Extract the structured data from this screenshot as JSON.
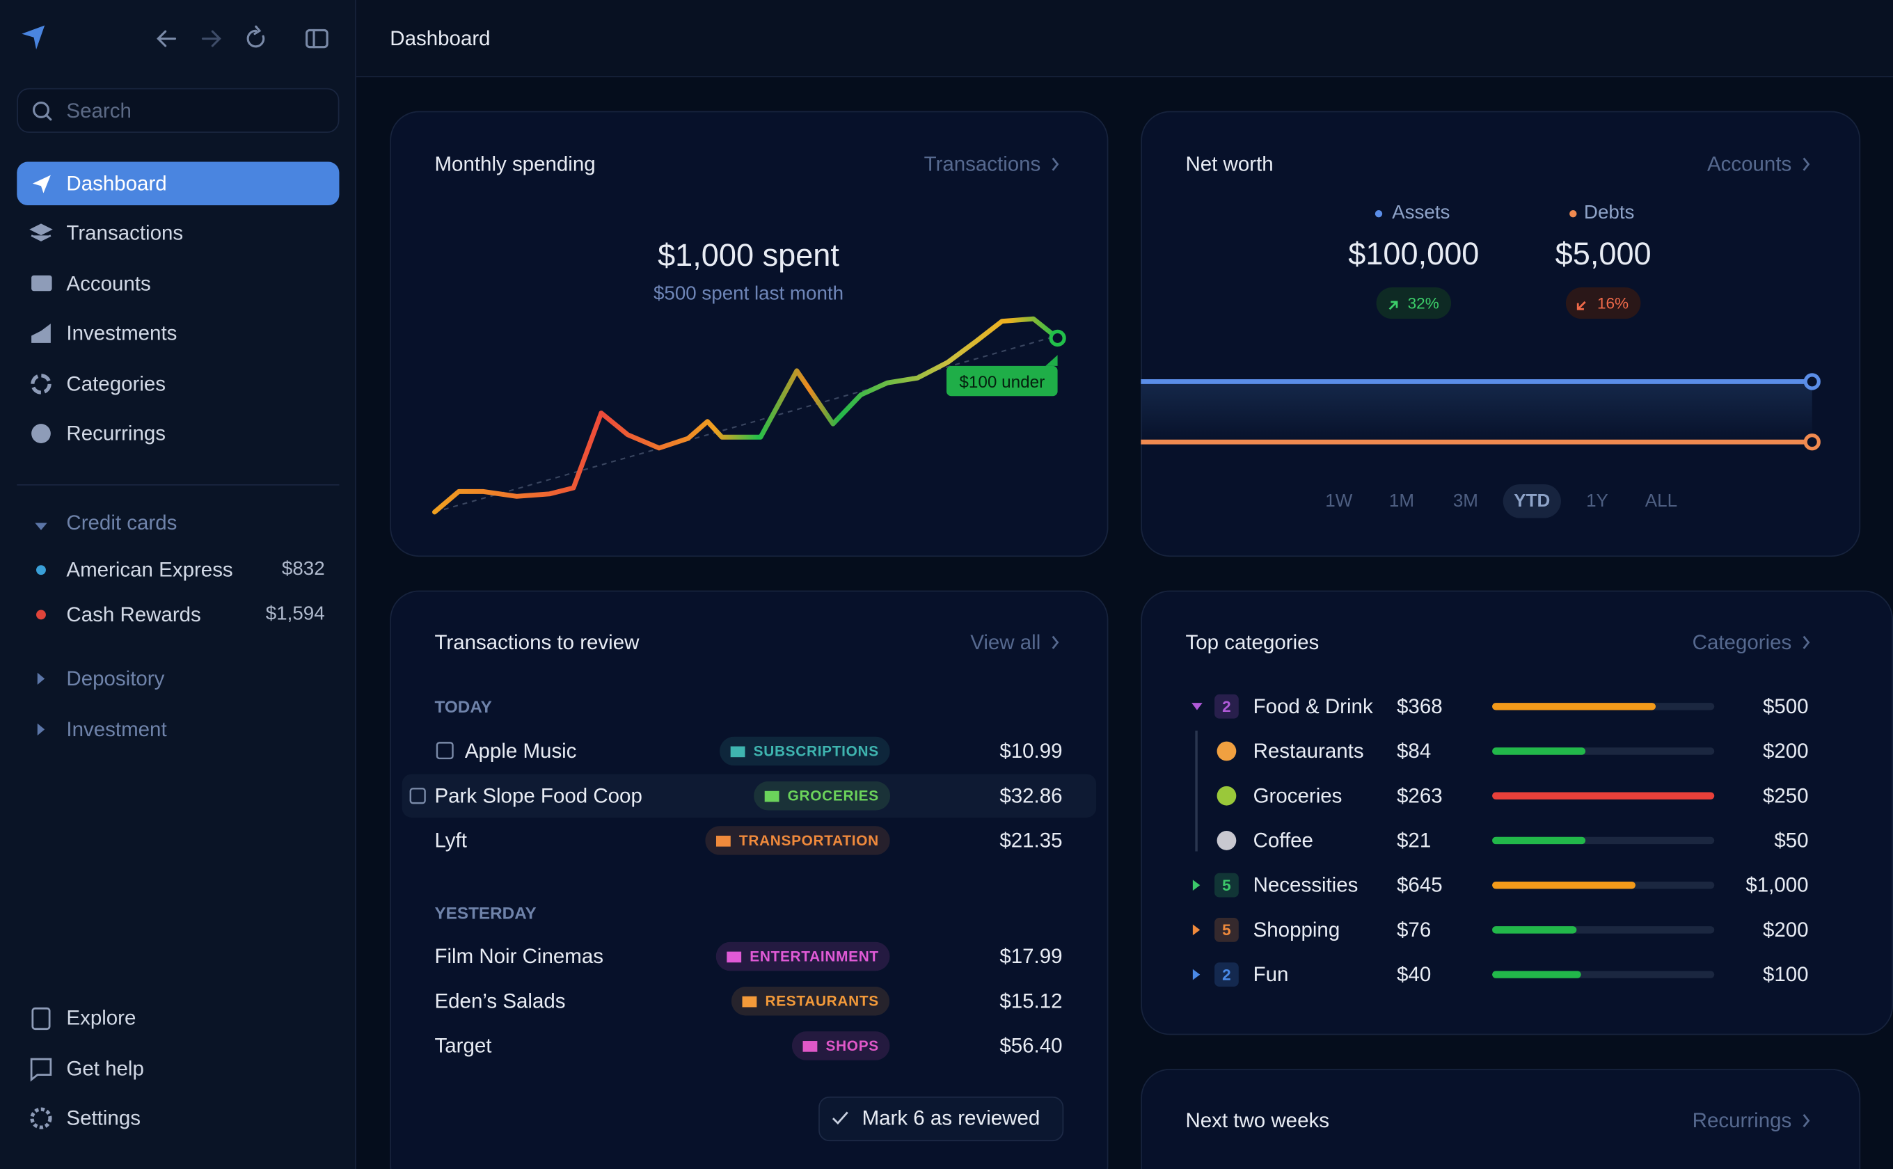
{
  "sidebar": {
    "search": "Search",
    "nav": [
      "Dashboard",
      "Transactions",
      "Accounts",
      "Investments",
      "Categories",
      "Recurrings"
    ],
    "active": 0,
    "groups": [
      {
        "name": "Credit cards",
        "accounts": [
          {
            "name": "American Express",
            "balance": "$832",
            "color": "#3aa0d8"
          },
          {
            "name": "Cash Rewards",
            "balance": "$1,594",
            "color": "#e0443a"
          }
        ]
      },
      {
        "name": "Depository"
      },
      {
        "name": "Investment"
      }
    ],
    "footer": [
      "Explore",
      "Get help",
      "Settings"
    ]
  },
  "header": {
    "title": "Dashboard"
  },
  "monthly_spending": {
    "title": "Monthly spending",
    "link": "Transactions",
    "amount": "$1,000 spent",
    "subtitle": "$500 spent last month",
    "badge": "$100 under"
  },
  "net_worth": {
    "title": "Net worth",
    "link": "Accounts",
    "assets": {
      "label": "Assets",
      "value": "$100,000",
      "change": "32%"
    },
    "debts": {
      "label": "Debts",
      "value": "$5,000",
      "change": "16%"
    },
    "ranges": [
      "1W",
      "1M",
      "3M",
      "YTD",
      "1Y",
      "ALL"
    ],
    "selected_range": 3
  },
  "transactions": {
    "title": "Transactions to review",
    "link": "View all",
    "groups": [
      {
        "label": "TODAY",
        "items": [
          {
            "name": "Apple Music",
            "category": "SUBSCRIPTIONS",
            "tag_color": "#3fb5b0",
            "amount": "$10.99"
          },
          {
            "name": "Park Slope Food Coop",
            "category": "GROCERIES",
            "tag_color": "#6bd35b",
            "amount": "$32.86"
          },
          {
            "name": "Lyft",
            "category": "TRANSPORTATION",
            "tag_color": "#f08a3c",
            "amount": "$21.35"
          }
        ]
      },
      {
        "label": "YESTERDAY",
        "items": [
          {
            "name": "Film Noir Cinemas",
            "category": "ENTERTAINMENT",
            "tag_color": "#e05ad6",
            "amount": "$17.99"
          },
          {
            "name": "Eden’s Salads",
            "category": "RESTAURANTS",
            "tag_color": "#f39a3a",
            "amount": "$15.12"
          },
          {
            "name": "Target",
            "category": "SHOPS",
            "tag_color": "#e058c8",
            "amount": "$56.40"
          }
        ]
      }
    ],
    "button": "Mark 6 as reviewed"
  },
  "top_categories": {
    "title": "Top categories",
    "link": "Categories",
    "rows": [
      {
        "count": 2,
        "group_color": "#b05ad8",
        "name": "Food & Drink",
        "spent": 368,
        "spent_label": "$368",
        "budget": 500,
        "budget_label": "$500",
        "color": "#f39a1a"
      },
      {
        "icon_color": "#f0a040",
        "name": "Restaurants",
        "spent": 84,
        "spent_label": "$84",
        "budget": 200,
        "budget_label": "$200",
        "color": "#22b84a"
      },
      {
        "icon_color": "#9ac83a",
        "name": "Groceries",
        "spent": 263,
        "spent_label": "$263",
        "budget": 250,
        "budget_label": "$250",
        "color": "#e8403a"
      },
      {
        "icon_color": "#c8c8d0",
        "name": "Coffee",
        "spent": 21,
        "spent_label": "$21",
        "budget": 50,
        "budget_label": "$50",
        "color": "#22b84a"
      },
      {
        "count": 5,
        "group_color": "#3cc86a",
        "name": "Necessities",
        "spent": 645,
        "spent_label": "$645",
        "budget": 1000,
        "budget_label": "$1,000",
        "color": "#f39a1a"
      },
      {
        "count": 5,
        "group_color": "#f08a3c",
        "name": "Shopping",
        "spent": 76,
        "spent_label": "$76",
        "budget": 200,
        "budget_label": "$200",
        "color": "#22b84a"
      },
      {
        "count": 2,
        "group_color": "#4a8ae8",
        "name": "Fun",
        "spent": 40,
        "spent_label": "$40",
        "budget": 100,
        "budget_label": "$100",
        "color": "#22b84a"
      }
    ]
  },
  "next_two_weeks": {
    "title": "Next two weeks",
    "link": "Recurrings"
  }
}
